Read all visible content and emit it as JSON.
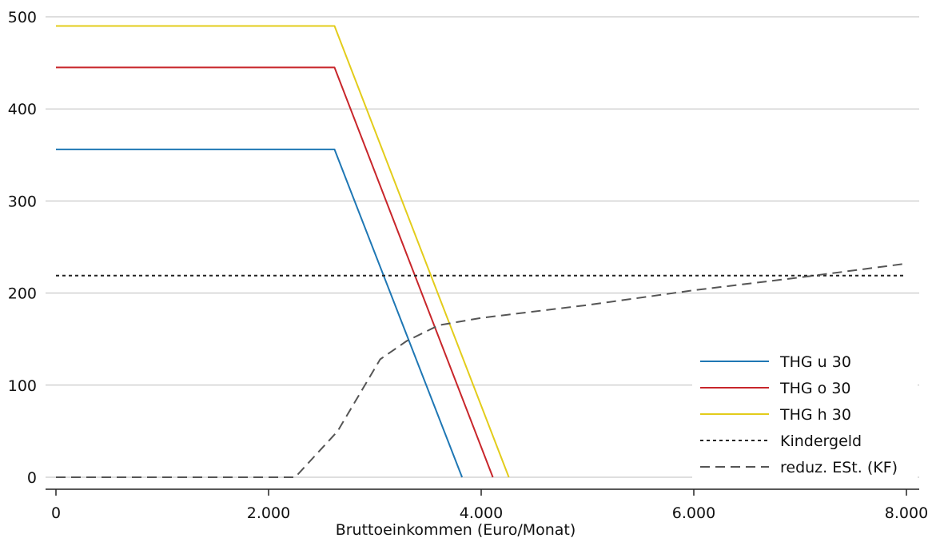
{
  "chart_data": {
    "type": "line",
    "xlabel": "Bruttoeinkommen (Euro/Monat)",
    "ylabel": "",
    "xlim": [
      0,
      8000
    ],
    "ylim": [
      0,
      500
    ],
    "x_ticks": [
      0,
      2000,
      4000,
      6000,
      8000
    ],
    "x_tick_labels": [
      "0",
      "2.000",
      "4.000",
      "6.000",
      "8.000"
    ],
    "y_ticks": [
      0,
      100,
      200,
      300,
      400,
      500
    ],
    "y_tick_labels": [
      "0",
      "100",
      "200",
      "300",
      "400",
      "500"
    ],
    "grid": "horizontal",
    "legend_position": "bottom-right",
    "series": [
      {
        "name": "THG u 30",
        "color": "#1f77b4",
        "style": "solid",
        "points": [
          [
            0,
            356
          ],
          [
            2620,
            356
          ],
          [
            3820,
            0
          ]
        ]
      },
      {
        "name": "THG o 30",
        "color": "#c8262b",
        "style": "solid",
        "points": [
          [
            0,
            445
          ],
          [
            2620,
            445
          ],
          [
            4110,
            0
          ]
        ]
      },
      {
        "name": "THG h 30",
        "color": "#e3cc1b",
        "style": "solid",
        "points": [
          [
            0,
            490
          ],
          [
            2620,
            490
          ],
          [
            4260,
            0
          ]
        ]
      },
      {
        "name": "Kindergeld",
        "color": "#222222",
        "style": "dotted",
        "points": [
          [
            0,
            219
          ],
          [
            8000,
            219
          ]
        ]
      },
      {
        "name": "reduz. ESt. (KF)",
        "color": "#555555",
        "style": "dashed",
        "points": [
          [
            0,
            0
          ],
          [
            2250,
            0
          ],
          [
            2650,
            50
          ],
          [
            3050,
            128
          ],
          [
            3300,
            148
          ],
          [
            3600,
            165
          ],
          [
            4000,
            173
          ],
          [
            5000,
            187
          ],
          [
            6000,
            203
          ],
          [
            7000,
            217
          ],
          [
            8000,
            232
          ]
        ]
      }
    ]
  }
}
